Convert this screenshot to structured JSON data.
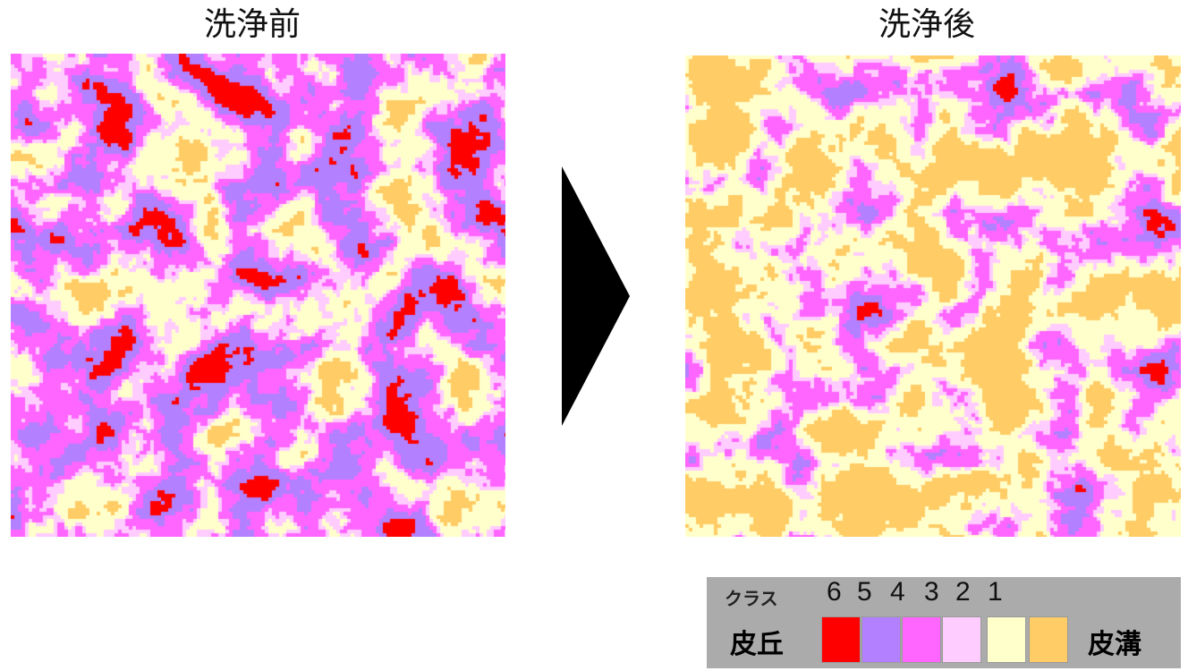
{
  "panels": {
    "before": {
      "title": "洗浄前"
    },
    "after": {
      "title": "洗浄後"
    }
  },
  "legend": {
    "title": "クラス",
    "left_label": "皮丘",
    "right_label": "皮溝",
    "classes": [
      {
        "number": "6",
        "color": "#ff0000"
      },
      {
        "number": "5",
        "color": "#b380ff"
      },
      {
        "number": "4",
        "color": "#ff66ff"
      },
      {
        "number": "3",
        "color": "#ffccff"
      },
      {
        "number": "2",
        "color": "#ffffcc"
      },
      {
        "number": "1",
        "color": "#ffcc66"
      }
    ]
  },
  "arrow_icon": "play-triangle-icon"
}
